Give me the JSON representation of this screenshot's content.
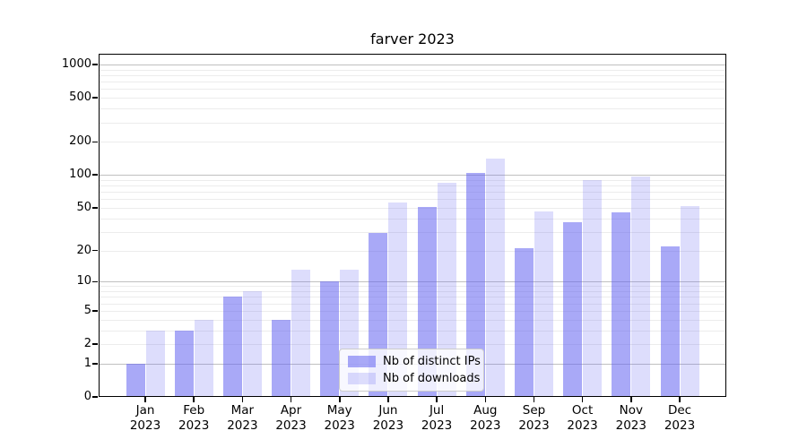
{
  "title": "farver 2023",
  "colors": {
    "bar_distinct_ips": "#a9a9f7",
    "bar_downloads": "#dddDF9",
    "bar_fill_ips": "rgba(99,99,241,0.55)",
    "bar_fill_downloads": "rgba(99,99,241,0.22)",
    "grid_major": "#c0c0c0",
    "grid_minor": "#ececec",
    "axis": "#000000"
  },
  "chart_data": {
    "type": "bar",
    "title": "farver 2023",
    "categories": [
      "Jan 2023",
      "Feb 2023",
      "Mar 2023",
      "Apr 2023",
      "May 2023",
      "Jun 2023",
      "Jul 2023",
      "Aug 2023",
      "Sep 2023",
      "Oct 2023",
      "Nov 2023",
      "Dec 2023"
    ],
    "series": [
      {
        "name": "Nb of distinct IPs",
        "values": [
          1,
          3,
          7,
          4,
          10,
          29,
          51,
          105,
          21,
          37,
          45,
          22
        ]
      },
      {
        "name": "Nb of downloads",
        "values": [
          3,
          4,
          8,
          13,
          13,
          56,
          85,
          140,
          46,
          90,
          96,
          52
        ]
      }
    ],
    "xlabel": "",
    "ylabel": "",
    "yscale": "log1p",
    "yticks": [
      0,
      1,
      2,
      5,
      10,
      20,
      50,
      100,
      200,
      500,
      1000
    ],
    "ylim": [
      0,
      1250
    ],
    "grid": "horizontal",
    "legend_position": "lower-center"
  }
}
